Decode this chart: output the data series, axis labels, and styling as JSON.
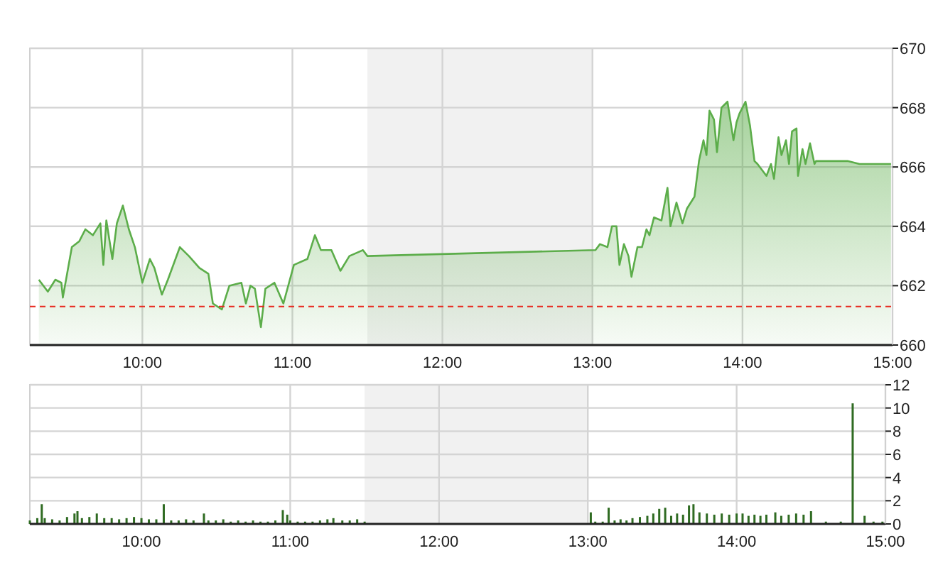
{
  "chart_data": [
    {
      "type": "area",
      "x": [
        9.31,
        9.37,
        9.42,
        9.46,
        9.47,
        9.53,
        9.58,
        9.62,
        9.67,
        9.72,
        9.74,
        9.76,
        9.8,
        9.83,
        9.87,
        9.91,
        9.95,
        10.0,
        10.05,
        10.08,
        10.13,
        10.17,
        10.25,
        10.31,
        10.38,
        10.44,
        10.47,
        10.53,
        10.58,
        10.66,
        10.69,
        10.72,
        10.75,
        10.79,
        10.82,
        10.88,
        10.94,
        11.01,
        11.1,
        11.15,
        11.19,
        11.26,
        11.32,
        11.38,
        11.47,
        11.5,
        13.02,
        13.05,
        13.1,
        13.13,
        13.16,
        13.18,
        13.21,
        13.24,
        13.26,
        13.3,
        13.33,
        13.36,
        13.38,
        13.41,
        13.46,
        13.5,
        13.52,
        13.56,
        13.6,
        13.63,
        13.68,
        13.71,
        13.74,
        13.76,
        13.78,
        13.81,
        13.83,
        13.86,
        13.9,
        13.94,
        13.96,
        13.98,
        14.02,
        14.05,
        14.08,
        14.1,
        14.16,
        14.19,
        14.21,
        14.24,
        14.26,
        14.29,
        14.31,
        14.33,
        14.36,
        14.37,
        14.4,
        14.42,
        14.45,
        14.48,
        14.49,
        14.7,
        14.78,
        14.99
      ],
      "series": [
        {
          "color": "#5cad4a",
          "values": [
            662.2,
            661.8,
            662.2,
            662.1,
            661.6,
            663.3,
            663.5,
            663.9,
            663.7,
            664.1,
            662.7,
            664.2,
            662.9,
            664.1,
            664.7,
            663.9,
            663.3,
            662.1,
            662.9,
            662.6,
            661.7,
            662.2,
            663.3,
            663.0,
            662.6,
            662.4,
            661.4,
            661.2,
            662.0,
            662.1,
            661.4,
            662.0,
            661.9,
            660.6,
            661.9,
            662.1,
            661.4,
            662.7,
            662.9,
            663.7,
            663.2,
            663.2,
            662.5,
            663.0,
            663.2,
            663.0,
            663.2,
            663.4,
            663.3,
            664.0,
            664.0,
            662.7,
            663.4,
            663.0,
            662.3,
            663.3,
            663.3,
            663.9,
            663.7,
            664.3,
            664.2,
            665.3,
            664.0,
            664.8,
            664.1,
            664.6,
            665.0,
            666.2,
            666.9,
            666.4,
            667.9,
            667.6,
            666.5,
            668.0,
            668.2,
            666.9,
            667.5,
            667.8,
            668.2,
            667.4,
            666.2,
            666.1,
            665.7,
            666.1,
            665.6,
            667.0,
            666.4,
            666.9,
            666.1,
            667.2,
            667.3,
            665.7,
            666.6,
            666.1,
            666.8,
            666.1,
            666.2,
            666.2,
            666.1,
            666.1
          ]
        }
      ],
      "xlim": [
        9.25,
        15
      ],
      "ylim": [
        660,
        670
      ],
      "xticks": [
        {
          "value": 10,
          "label": "10:00"
        },
        {
          "value": 11,
          "label": "11:00"
        },
        {
          "value": 12,
          "label": "12:00"
        },
        {
          "value": 13,
          "label": "13:00"
        },
        {
          "value": 14,
          "label": "14:00"
        },
        {
          "value": 15,
          "label": "15:00"
        }
      ],
      "yticks": [
        660,
        662,
        664,
        666,
        668,
        670
      ],
      "grid": true,
      "ref_lines": [
        {
          "axis": "y",
          "value": 661.3,
          "color": "#e8281e",
          "line_style": "dashed"
        }
      ],
      "bands": [
        {
          "axis": "x",
          "from": 11.5,
          "to": 13,
          "color": "#f1f1f1"
        }
      ]
    },
    {
      "type": "bar",
      "x": [
        9.25,
        9.3,
        9.33,
        9.35,
        9.4,
        9.45,
        9.5,
        9.55,
        9.57,
        9.6,
        9.65,
        9.7,
        9.75,
        9.8,
        9.85,
        9.9,
        9.95,
        10.0,
        10.05,
        10.1,
        10.15,
        10.2,
        10.25,
        10.3,
        10.35,
        10.42,
        10.45,
        10.5,
        10.55,
        10.6,
        10.65,
        10.7,
        10.75,
        10.8,
        10.85,
        10.9,
        10.95,
        10.98,
        11.0,
        11.05,
        11.1,
        11.15,
        11.2,
        11.25,
        11.29,
        11.35,
        11.4,
        11.45,
        11.5,
        13.02,
        13.05,
        13.1,
        13.14,
        13.18,
        13.22,
        13.26,
        13.3,
        13.35,
        13.4,
        13.44,
        13.48,
        13.52,
        13.56,
        13.6,
        13.64,
        13.68,
        13.71,
        13.75,
        13.8,
        13.85,
        13.9,
        13.95,
        14.0,
        14.04,
        14.08,
        14.12,
        14.16,
        14.2,
        14.26,
        14.3,
        14.35,
        14.4,
        14.45,
        14.5,
        14.6,
        14.7,
        14.78,
        14.86,
        14.92,
        14.98
      ],
      "series": [
        {
          "color": "#2f6b22",
          "values": [
            0.3,
            0.5,
            1.7,
            0.5,
            0.4,
            0.3,
            0.6,
            0.9,
            1.1,
            0.5,
            0.6,
            0.9,
            0.5,
            0.5,
            0.4,
            0.5,
            0.6,
            0.5,
            0.4,
            0.4,
            1.7,
            0.3,
            0.3,
            0.4,
            0.3,
            0.9,
            0.3,
            0.3,
            0.4,
            0.2,
            0.3,
            0.2,
            0.3,
            0.2,
            0.2,
            0.3,
            1.2,
            0.8,
            0.3,
            0.2,
            0.2,
            0.2,
            0.3,
            0.4,
            0.5,
            0.3,
            0.3,
            0.4,
            0.2,
            1.0,
            0.2,
            0.2,
            1.4,
            0.3,
            0.4,
            0.3,
            0.5,
            0.6,
            0.7,
            0.9,
            1.3,
            1.4,
            0.7,
            0.9,
            0.8,
            1.6,
            1.7,
            1.0,
            0.9,
            0.8,
            0.9,
            0.8,
            0.9,
            0.9,
            0.7,
            0.8,
            0.7,
            0.8,
            1.0,
            0.7,
            0.8,
            0.9,
            0.8,
            1.1,
            0.2,
            0.2,
            10.4,
            0.7,
            0.2,
            0.2
          ]
        }
      ],
      "xlim": [
        9.25,
        15
      ],
      "ylim": [
        0,
        12
      ],
      "xticks": [
        {
          "value": 10,
          "label": "10:00"
        },
        {
          "value": 11,
          "label": "11:00"
        },
        {
          "value": 12,
          "label": "12:00"
        },
        {
          "value": 13,
          "label": "13:00"
        },
        {
          "value": 14,
          "label": "14:00"
        },
        {
          "value": 15,
          "label": "15:00"
        }
      ],
      "yticks": [
        0,
        2,
        4,
        6,
        8,
        10,
        12
      ],
      "grid": true,
      "bands": [
        {
          "axis": "x",
          "from": 11.5,
          "to": 13,
          "color": "#f1f1f1"
        }
      ]
    }
  ]
}
